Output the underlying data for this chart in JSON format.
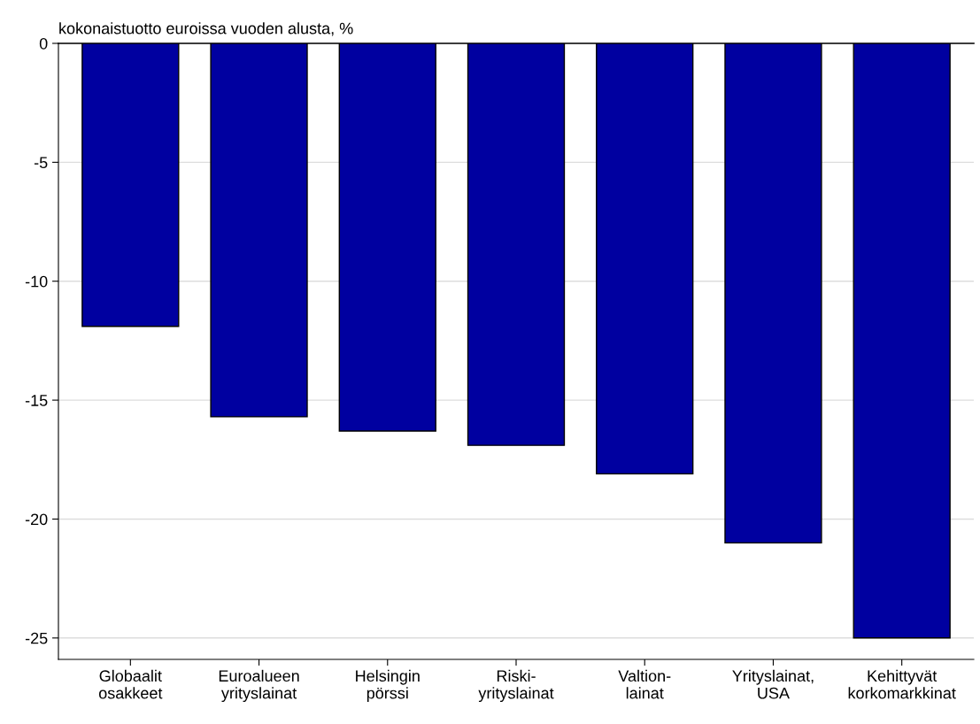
{
  "chart_data": {
    "type": "bar",
    "ylabel": "kokonaistuotto euroissa vuoden alusta, %",
    "categories": [
      "Globaalit\nosakkeet",
      "Euroalueen\nyrityslainat",
      "Helsingin\npörssi",
      "Riski-\nyrityslainat",
      "Valtion-\nlainat",
      "Yrityslainat,\nUSA",
      "Kehittyvät\nkorkomarkkinat"
    ],
    "values": [
      -11.9,
      -15.7,
      -16.3,
      -16.9,
      -18.1,
      -21.0,
      -25.0
    ],
    "color": "#0000a0",
    "ylim": [
      -25.9,
      0
    ],
    "yticks": [
      {
        "value": 0,
        "label": "0"
      },
      {
        "value": -5,
        "label": "-5"
      },
      {
        "value": -10,
        "label": "-10"
      },
      {
        "value": -15,
        "label": "-15"
      },
      {
        "value": -20,
        "label": "-20"
      },
      {
        "value": -25,
        "label": "-25"
      }
    ],
    "grid": "y"
  }
}
